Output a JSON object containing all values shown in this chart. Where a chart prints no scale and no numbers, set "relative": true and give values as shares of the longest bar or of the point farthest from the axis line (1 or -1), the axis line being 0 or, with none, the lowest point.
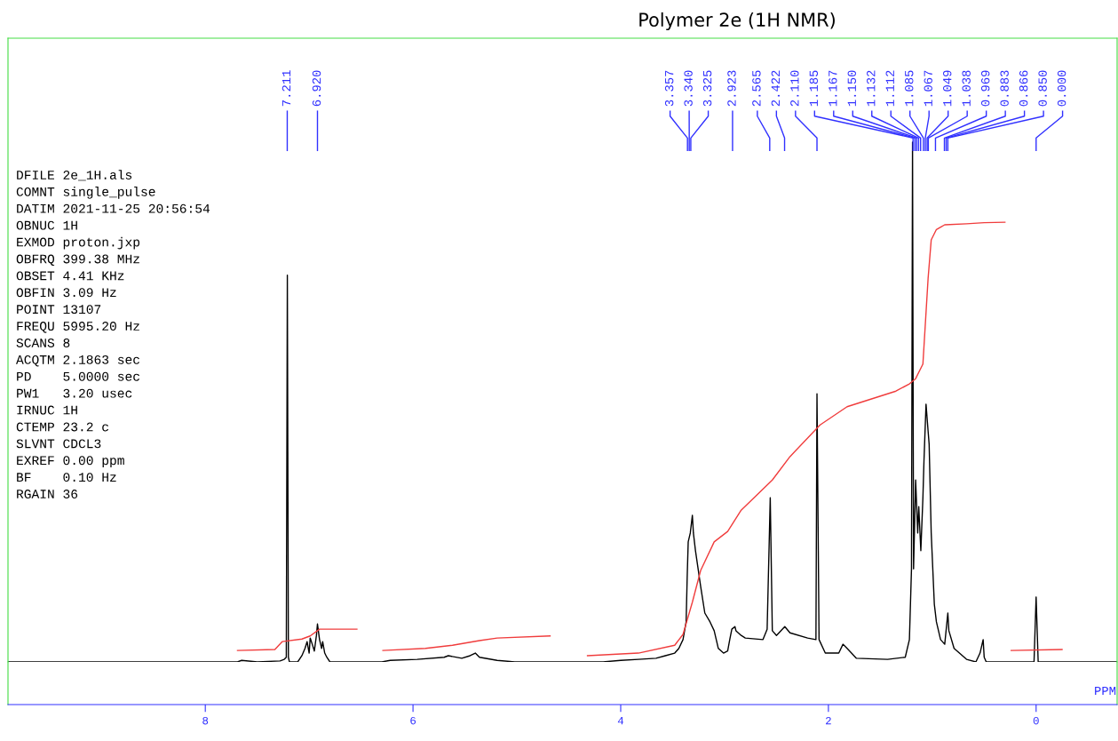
{
  "chart_data": {
    "type": "line",
    "title": "Polymer 2e (1H NMR)",
    "xlabel": "PPM",
    "relative": true,
    "tick_labels": "x",
    "xlim": [
      9.9,
      -0.78
    ],
    "xticks": [
      8,
      6,
      4,
      2,
      0
    ],
    "series": [
      {
        "color": "#000000",
        "x": [
          9.9,
          7.69,
          7.65,
          7.5,
          7.28,
          7.24,
          7.22,
          7.21,
          7.2,
          7.19,
          7.11,
          7.07,
          7.04,
          7.02,
          7.0,
          6.99,
          6.97,
          6.95,
          6.93,
          6.92,
          6.9,
          6.88,
          6.87,
          6.85,
          6.83,
          6.8,
          6.3,
          6.22,
          5.96,
          5.7,
          5.66,
          5.53,
          5.45,
          5.4,
          5.36,
          5.19,
          5.02,
          4.85,
          4.17,
          4.0,
          3.83,
          3.66,
          3.57,
          3.48,
          3.44,
          3.4,
          3.37,
          3.36,
          3.35,
          3.33,
          3.31,
          3.3,
          3.28,
          3.23,
          3.19,
          3.14,
          3.1,
          3.08,
          3.06,
          3.01,
          2.97,
          2.95,
          2.93,
          2.9,
          2.89,
          2.84,
          2.8,
          2.63,
          2.59,
          2.56,
          2.54,
          2.5,
          2.42,
          2.37,
          2.2,
          2.12,
          2.11,
          2.09,
          2.03,
          1.9,
          1.86,
          1.82,
          1.73,
          1.43,
          1.26,
          1.22,
          1.2,
          1.19,
          1.18,
          1.16,
          1.14,
          1.13,
          1.11,
          1.09,
          1.08,
          1.06,
          1.04,
          1.03,
          1.01,
          0.98,
          0.96,
          0.92,
          0.88,
          0.85,
          0.84,
          0.79,
          0.67,
          0.58,
          0.54,
          0.51,
          0.5,
          0.48,
          0.02,
          0.0,
          -0.02,
          -0.78
        ],
        "values": [
          0,
          0,
          0.003,
          0,
          0.002,
          0.005,
          0.009,
          0.744,
          0.009,
          0,
          0,
          0.012,
          0.026,
          0.039,
          0.017,
          0.046,
          0.034,
          0.021,
          0.051,
          0.073,
          0.043,
          0.026,
          0.039,
          0.017,
          0.009,
          0,
          0,
          0.003,
          0.005,
          0.009,
          0.012,
          0.007,
          0.012,
          0.017,
          0.009,
          0.003,
          0,
          0,
          0,
          0.003,
          0.005,
          0.007,
          0.012,
          0.017,
          0.026,
          0.043,
          0.077,
          0.162,
          0.231,
          0.248,
          0.282,
          0.248,
          0.214,
          0.145,
          0.094,
          0.077,
          0.06,
          0.043,
          0.026,
          0.017,
          0.021,
          0.043,
          0.063,
          0.068,
          0.06,
          0.051,
          0.046,
          0.043,
          0.063,
          0.316,
          0.06,
          0.051,
          0.068,
          0.056,
          0.046,
          0.043,
          0.516,
          0.043,
          0.017,
          0.017,
          0.034,
          0.026,
          0.007,
          0.005,
          0.009,
          0.043,
          0.179,
          1.0,
          0.179,
          0.35,
          0.248,
          0.299,
          0.214,
          0.316,
          0.385,
          0.496,
          0.444,
          0.419,
          0.248,
          0.111,
          0.077,
          0.043,
          0.034,
          0.094,
          0.06,
          0.026,
          0.005,
          0,
          0.017,
          0.043,
          0.009,
          0,
          0,
          0.125,
          0,
          0
        ]
      },
      {
        "color": "#f03c3c",
        "x": [
          7.69,
          7.33,
          7.26,
          7.07,
          6.99,
          6.9,
          6.54,
          6.4,
          6.29,
          5.88,
          5.62,
          5.36,
          5.19,
          4.68,
          4.5,
          4.32,
          3.83,
          3.48,
          3.4,
          3.31,
          3.23,
          3.1,
          2.97,
          2.84,
          2.54,
          2.37,
          2.08,
          1.82,
          1.35,
          1.22,
          1.16,
          1.09,
          1.04,
          1.01,
          0.96,
          0.88,
          0.67,
          0.5,
          0.3,
          0.27,
          0.24,
          -0.25
        ],
        "values": [
          0.022,
          0.024,
          0.039,
          0.044,
          0.05,
          0.063,
          0.063,
          null,
          0.022,
          0.026,
          0.032,
          0.041,
          0.046,
          0.05,
          null,
          0.012,
          0.017,
          0.032,
          0.053,
          0.115,
          0.176,
          0.231,
          0.251,
          0.292,
          0.35,
          0.395,
          0.456,
          0.491,
          0.521,
          0.535,
          0.545,
          0.573,
          0.738,
          0.812,
          0.832,
          0.841,
          0.843,
          0.845,
          0.846,
          null,
          0.022,
          0.024
        ]
      }
    ],
    "annotations": [
      {
        "text": "7.211",
        "x": 7.211
      },
      {
        "text": "6.920",
        "x": 6.92
      },
      {
        "text": "3.357",
        "x": 3.357
      },
      {
        "text": "3.340",
        "x": 3.34
      },
      {
        "text": "3.325",
        "x": 3.325
      },
      {
        "text": "2.923",
        "x": 2.923
      },
      {
        "text": "2.565",
        "x": 2.565
      },
      {
        "text": "2.422",
        "x": 2.422
      },
      {
        "text": "2.110",
        "x": 2.11
      },
      {
        "text": "1.185",
        "x": 1.185
      },
      {
        "text": "1.167",
        "x": 1.167
      },
      {
        "text": "1.150",
        "x": 1.15
      },
      {
        "text": "1.132",
        "x": 1.132
      },
      {
        "text": "1.112",
        "x": 1.112
      },
      {
        "text": "1.085",
        "x": 1.085
      },
      {
        "text": "1.067",
        "x": 1.067
      },
      {
        "text": "1.049",
        "x": 1.049
      },
      {
        "text": "1.038",
        "x": 1.038
      },
      {
        "text": "0.969",
        "x": 0.969
      },
      {
        "text": "0.883",
        "x": 0.883
      },
      {
        "text": "0.866",
        "x": 0.866
      },
      {
        "text": "0.850",
        "x": 0.85
      },
      {
        "text": "0.000",
        "x": 0.0
      },
      "DFILE 2e_1H.als",
      "COMNT single_pulse",
      "DATIM 2021-11-25 20:56:54",
      "OBNUC 1H",
      "EXMOD proton.jxp",
      "OBFRQ 399.38 MHz",
      "OBSET 4.41 KHz",
      "OBFIN 3.09 Hz",
      "POINT 13107",
      "FREQU 5995.20 Hz",
      "SCANS 8",
      "ACQTM 2.1863 sec",
      "PD    5.0000 sec",
      "PW1   3.20 usec",
      "IRNUC 1H",
      "CTEMP 23.2 c",
      "SLVNT CDCL3",
      "EXREF 0.00 ppm",
      "BF    0.10 Hz",
      "RGAIN 36"
    ]
  }
}
